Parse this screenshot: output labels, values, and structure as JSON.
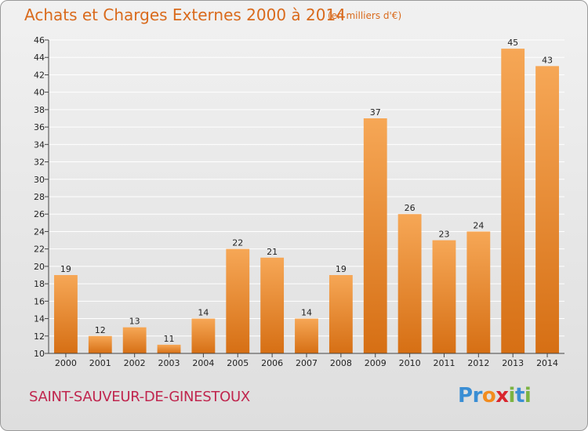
{
  "header": {
    "title": "Achats et Charges Externes 2000 à 2014",
    "subtitle": "(en milliers d'€)"
  },
  "footer": {
    "town": "SAINT-SAUVEUR-DE-GINESTOUX",
    "logo": {
      "letters": [
        "P",
        "r",
        "o",
        "x",
        "i",
        "t",
        "i"
      ],
      "colors": [
        "#3a8ed4",
        "#3a8ed4",
        "#f28c1e",
        "#d9262e",
        "#7cb342",
        "#3a8ed4",
        "#7cb342"
      ]
    }
  },
  "colors": {
    "bar_light": "#f6a756",
    "bar_dark": "#d66f14",
    "grid": "#ffffff",
    "axis_text": "#222222"
  },
  "chart_data": {
    "type": "bar",
    "categories": [
      "2000",
      "2001",
      "2002",
      "2003",
      "2004",
      "2005",
      "2006",
      "2007",
      "2008",
      "2009",
      "2010",
      "2011",
      "2012",
      "2013",
      "2014"
    ],
    "values": [
      19,
      12,
      13,
      11,
      14,
      22,
      21,
      14,
      19,
      37,
      26,
      23,
      24,
      45,
      43
    ],
    "title": "Achats et Charges Externes 2000 à 2014",
    "subtitle": "(en milliers d'€)",
    "ylim": [
      10,
      46
    ],
    "yticks": [
      10,
      12,
      14,
      16,
      18,
      20,
      22,
      24,
      26,
      28,
      30,
      32,
      34,
      36,
      38,
      40,
      42,
      44,
      46
    ],
    "grid": true,
    "data_labels": true
  }
}
